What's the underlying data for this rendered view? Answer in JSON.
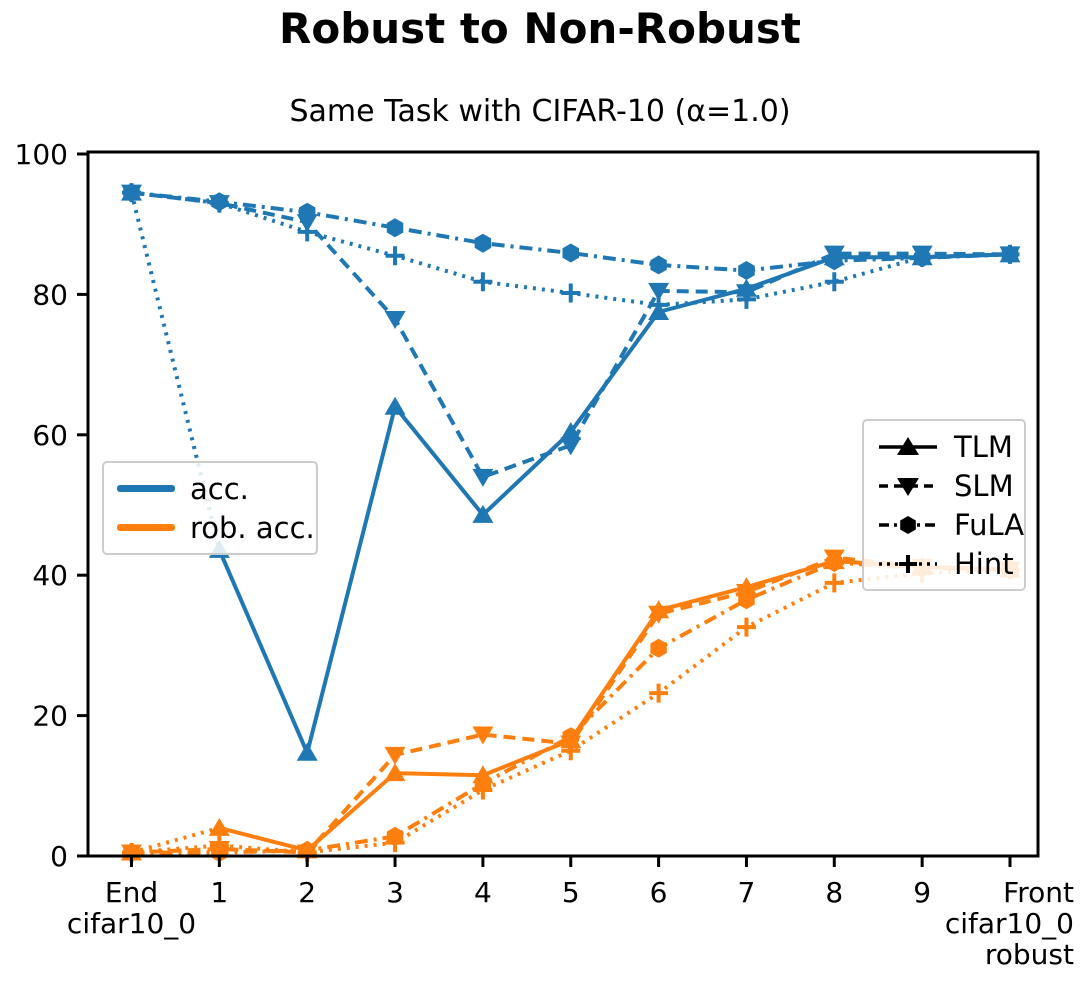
{
  "title": "Robust to Non-Robust",
  "chart_data": {
    "type": "line",
    "subtitle": "Same Task with CIFAR-10 (α=1.0)",
    "x_tick_labels": [
      {
        "lines": [
          "End",
          "cifar10_0"
        ],
        "align": "center"
      },
      {
        "lines": [
          "1"
        ],
        "align": "center"
      },
      {
        "lines": [
          "2"
        ],
        "align": "center"
      },
      {
        "lines": [
          "3"
        ],
        "align": "center"
      },
      {
        "lines": [
          "4"
        ],
        "align": "center"
      },
      {
        "lines": [
          "5"
        ],
        "align": "center"
      },
      {
        "lines": [
          "6"
        ],
        "align": "center"
      },
      {
        "lines": [
          "7"
        ],
        "align": "center"
      },
      {
        "lines": [
          "8"
        ],
        "align": "center"
      },
      {
        "lines": [
          "9"
        ],
        "align": "center"
      },
      {
        "lines": [
          "Front",
          "cifar10_0",
          "robust"
        ],
        "align": "right"
      }
    ],
    "ylim": [
      0,
      100
    ],
    "yticks": [
      0,
      20,
      40,
      60,
      80,
      100
    ],
    "grid": false,
    "colors": {
      "acc": "#1f77b4",
      "rob_acc": "#ff7f0e",
      "axis": "#000000"
    },
    "color_legend": {
      "position": "center-left",
      "items": [
        {
          "label": "acc.",
          "color": "#1f77b4"
        },
        {
          "label": "rob. acc.",
          "color": "#ff7f0e"
        }
      ]
    },
    "style_legend": {
      "position": "center-right",
      "items": [
        {
          "label": "TLM",
          "marker": "triangle-up",
          "line": "solid"
        },
        {
          "label": "SLM",
          "marker": "triangle-down",
          "line": "dashed"
        },
        {
          "label": "FuLA",
          "marker": "hexagon",
          "line": "dashdot"
        },
        {
          "label": "Hint",
          "marker": "plus",
          "line": "dotted"
        }
      ]
    },
    "series": [
      {
        "method": "TLM",
        "metric": "acc.",
        "color": "#1f77b4",
        "line": "solid",
        "marker": "triangle-up",
        "first_segment_line": "dotted",
        "values": [
          94.5,
          43.6,
          14.7,
          64.0,
          48.6,
          60.4,
          77.5,
          80.8,
          85.3,
          85.3,
          85.7
        ]
      },
      {
        "method": "SLM",
        "metric": "acc.",
        "color": "#1f77b4",
        "line": "dashed",
        "marker": "triangle-down",
        "values": [
          94.5,
          93.0,
          90.3,
          76.5,
          54.0,
          58.5,
          80.5,
          80.3,
          85.8,
          85.8,
          85.7
        ]
      },
      {
        "method": "FuLA",
        "metric": "acc.",
        "color": "#1f77b4",
        "line": "dashdot",
        "marker": "hexagon",
        "values": [
          94.5,
          93.2,
          91.7,
          89.5,
          87.3,
          85.9,
          84.2,
          83.4,
          84.8,
          85.2,
          85.7
        ]
      },
      {
        "method": "Hint",
        "metric": "acc.",
        "color": "#1f77b4",
        "line": "dotted",
        "marker": "plus",
        "values": [
          94.5,
          93.0,
          88.9,
          85.5,
          81.8,
          80.2,
          78.5,
          79.3,
          81.8,
          85.3,
          85.7
        ]
      },
      {
        "method": "TLM",
        "metric": "rob. acc.",
        "color": "#ff7f0e",
        "line": "solid",
        "marker": "triangle-up",
        "first_segment_line": "dotted",
        "values": [
          0.5,
          4.0,
          0.8,
          11.8,
          11.5,
          16.5,
          35.0,
          38.3,
          42.0,
          41.2,
          40.8
        ]
      },
      {
        "method": "SLM",
        "metric": "rob. acc.",
        "color": "#ff7f0e",
        "line": "dashed",
        "marker": "triangle-down",
        "values": [
          0.5,
          1.0,
          0.5,
          14.4,
          17.3,
          16.0,
          34.5,
          37.6,
          42.5,
          41.2,
          40.8
        ]
      },
      {
        "method": "FuLA",
        "metric": "rob. acc.",
        "color": "#ff7f0e",
        "line": "dashdot",
        "marker": "hexagon",
        "values": [
          0.5,
          0.5,
          0.8,
          2.8,
          10.3,
          17.0,
          29.6,
          36.5,
          41.8,
          41.0,
          40.8
        ]
      },
      {
        "method": "Hint",
        "metric": "rob. acc.",
        "color": "#ff7f0e",
        "line": "dotted",
        "marker": "plus",
        "values": [
          0.5,
          1.5,
          0.5,
          1.9,
          9.4,
          15.0,
          23.2,
          32.6,
          38.9,
          40.3,
          40.8
        ]
      }
    ]
  }
}
